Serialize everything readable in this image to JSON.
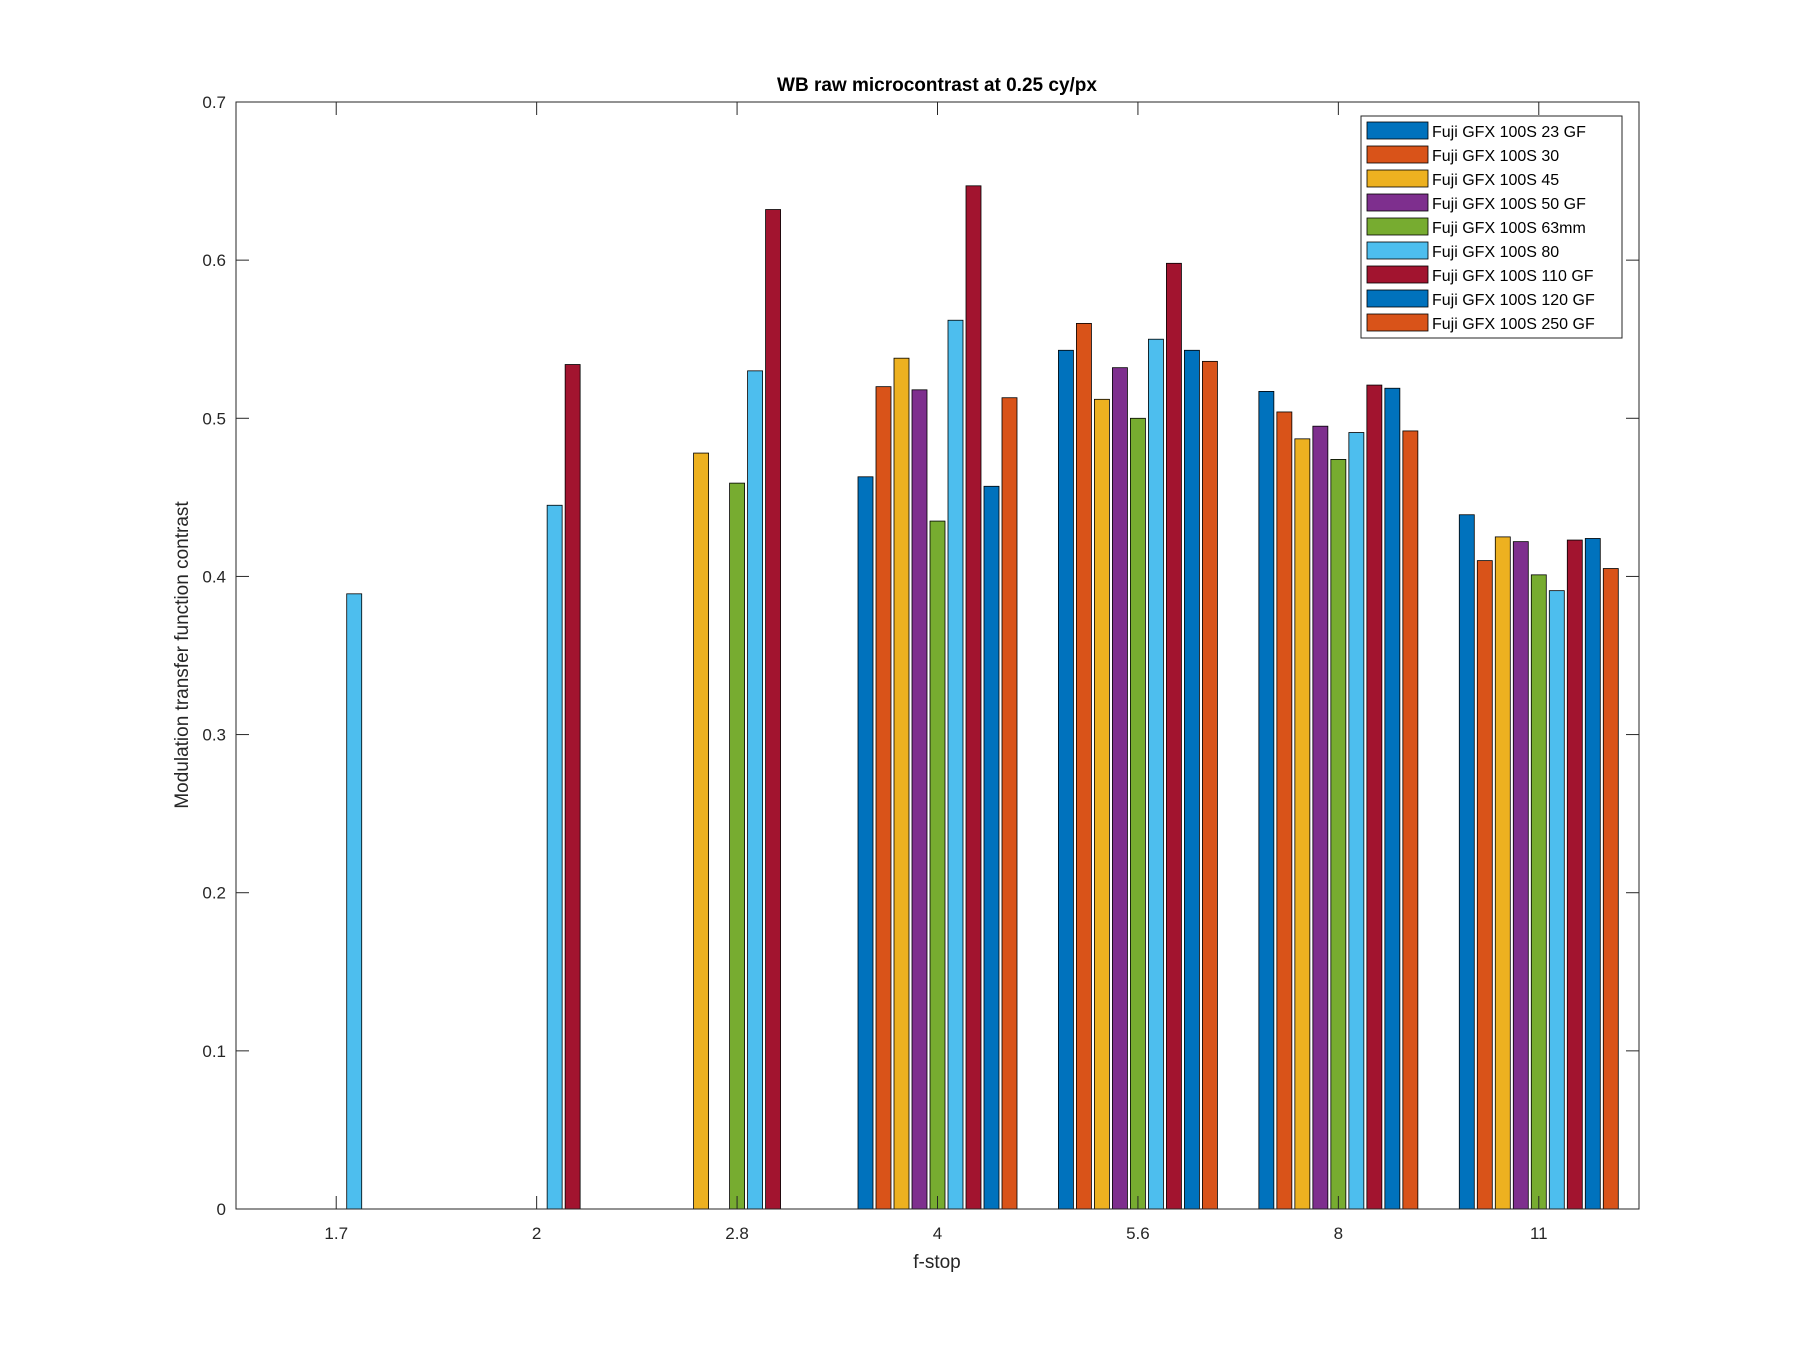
{
  "chart_data": {
    "type": "bar",
    "title": "WB raw  microcontrast at 0.25 cy/px",
    "xlabel": "f-stop",
    "ylabel": "Modulation transfer function contrast",
    "categories": [
      "1.7",
      "2",
      "2.8",
      "4",
      "5.6",
      "8",
      "11"
    ],
    "ylim": [
      0,
      0.7
    ],
    "yticks": [
      "0",
      "0.1",
      "0.2",
      "0.3",
      "0.4",
      "0.5",
      "0.6",
      "0.7"
    ],
    "grid": false,
    "legend_position": "top-right",
    "series": [
      {
        "name": "Fuji GFX 100S 23  GF",
        "color": "#0072BD",
        "values": [
          null,
          null,
          null,
          0.463,
          0.543,
          0.517,
          0.439
        ]
      },
      {
        "name": "Fuji GFX 100S 30",
        "color": "#D95319",
        "values": [
          null,
          null,
          null,
          0.52,
          0.56,
          0.504,
          0.41
        ]
      },
      {
        "name": "Fuji GFX 100S 45",
        "color": "#EDB120",
        "values": [
          null,
          null,
          0.478,
          0.538,
          0.512,
          0.487,
          0.425
        ]
      },
      {
        "name": "Fuji GFX 100S 50 GF",
        "color": "#7E2F8E",
        "values": [
          null,
          null,
          null,
          0.518,
          0.532,
          0.495,
          0.422
        ]
      },
      {
        "name": "Fuji GFX 100S 63mm",
        "color": "#77AC30",
        "values": [
          null,
          null,
          0.459,
          0.435,
          0.5,
          0.474,
          0.401
        ]
      },
      {
        "name": "Fuji GFX 100S 80",
        "color": "#4DBEEE",
        "values": [
          0.389,
          0.445,
          0.53,
          0.562,
          0.55,
          0.491,
          0.391
        ]
      },
      {
        "name": "Fuji GFX 100S 110 GF",
        "color": "#A2142F",
        "values": [
          null,
          0.534,
          0.632,
          0.647,
          0.598,
          0.521,
          0.423
        ]
      },
      {
        "name": "Fuji GFX 100S 120 GF",
        "color": "#0072BD",
        "values": [
          null,
          null,
          null,
          0.457,
          0.543,
          0.519,
          0.424
        ]
      },
      {
        "name": "Fuji GFX 100S 250 GF",
        "color": "#D95319",
        "values": [
          null,
          null,
          null,
          0.513,
          0.536,
          0.492,
          0.405
        ]
      }
    ]
  }
}
